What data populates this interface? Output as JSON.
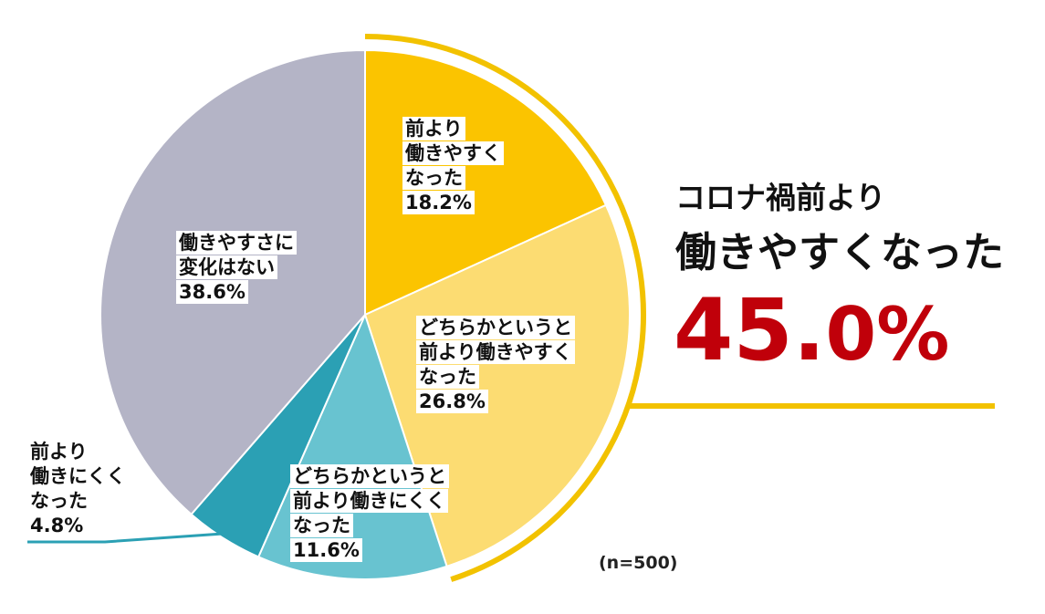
{
  "chart_data": {
    "type": "pie",
    "total_label": "(n=500)",
    "slices": [
      {
        "lines": [
          "前より",
          "働きやすく",
          "なった",
          "18.2%"
        ],
        "value": 18.2,
        "color": "#fbc400"
      },
      {
        "lines": [
          "どちらかというと",
          "前より働きやすく",
          "なった",
          "26.8%"
        ],
        "value": 26.8,
        "color": "#fcdc72"
      },
      {
        "lines": [
          "どちらかというと",
          "前より働きにくく",
          "なった",
          "11.6%"
        ],
        "value": 11.6,
        "color": "#68c3d0"
      },
      {
        "lines": [
          "前より",
          "働きにくく",
          "なった",
          "4.8%"
        ],
        "value": 4.8,
        "color": "#2ba0b4"
      },
      {
        "lines": [
          "働きやすさに",
          "変化はない",
          "38.6%"
        ],
        "value": 38.6,
        "color": "#b4b4c6"
      }
    ],
    "callout": {
      "subtitle": "コロナ禍前より",
      "title": "働きやすくなった",
      "percent_int": "45.",
      "percent_dec": "0%",
      "value": 45.0,
      "color": "#c0000a",
      "accent": "#f2c200"
    }
  }
}
